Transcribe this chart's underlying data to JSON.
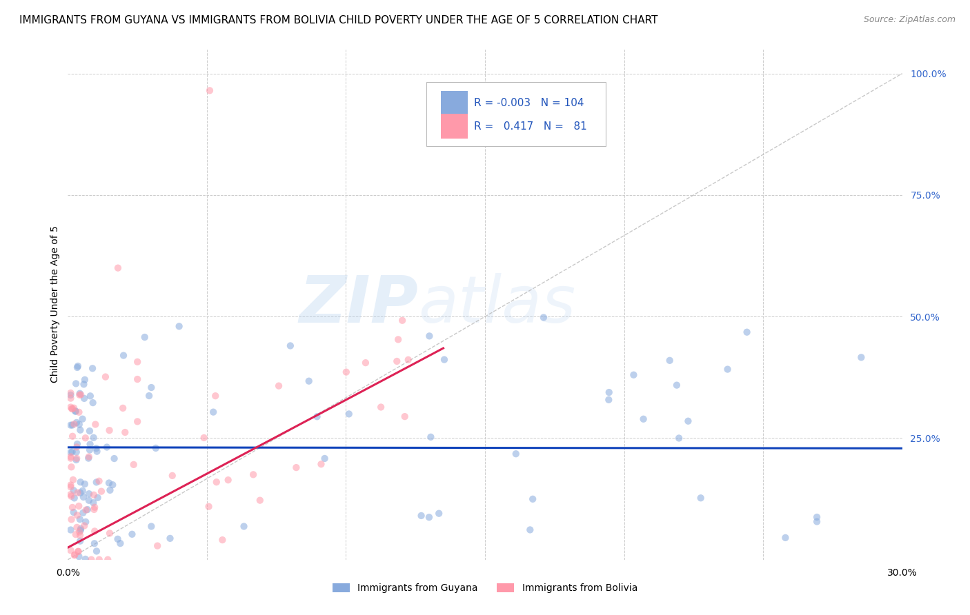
{
  "title": "IMMIGRANTS FROM GUYANA VS IMMIGRANTS FROM BOLIVIA CHILD POVERTY UNDER THE AGE OF 5 CORRELATION CHART",
  "source": "Source: ZipAtlas.com",
  "ylabel": "Child Poverty Under the Age of 5",
  "xlim": [
    0.0,
    0.3
  ],
  "ylim": [
    0.0,
    1.05
  ],
  "yticks": [
    0.0,
    0.25,
    0.5,
    0.75,
    1.0
  ],
  "yticklabels": [
    "",
    "25.0%",
    "50.0%",
    "75.0%",
    "100.0%"
  ],
  "legend_guyana": "Immigrants from Guyana",
  "legend_bolivia": "Immigrants from Bolivia",
  "R_guyana": -0.003,
  "N_guyana": 104,
  "R_bolivia": 0.417,
  "N_bolivia": 81,
  "color_guyana": "#88AADD",
  "color_bolivia": "#FF99AA",
  "trend_guyana_color": "#1144BB",
  "trend_bolivia_color": "#DD2255",
  "watermark_zip": "ZIP",
  "watermark_atlas": "atlas",
  "background_color": "#FFFFFF",
  "grid_color": "#CCCCCC",
  "title_fontsize": 11,
  "axis_label_fontsize": 10,
  "tick_fontsize": 10,
  "scatter_alpha": 0.55,
  "scatter_size": 55,
  "guyana_trend_x": [
    0.0,
    0.3
  ],
  "guyana_trend_y": [
    0.231,
    0.229
  ],
  "bolivia_trend_x": [
    0.0,
    0.135
  ],
  "bolivia_trend_y": [
    0.025,
    0.435
  ]
}
